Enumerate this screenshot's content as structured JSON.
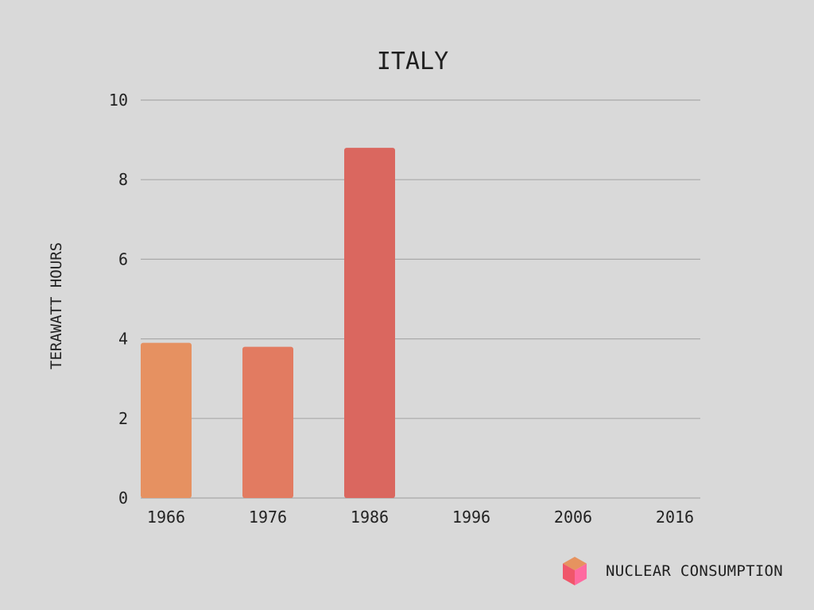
{
  "chart_data": {
    "type": "bar",
    "title": "ITALY",
    "xlabel": "",
    "ylabel": "TERAWATT HOURS",
    "categories": [
      "1966",
      "1976",
      "1986",
      "1996",
      "2006",
      "2016"
    ],
    "series": [
      {
        "name": "NUCLEAR CONSUMPTION",
        "values": [
          3.9,
          3.8,
          8.8,
          0,
          0,
          0
        ]
      }
    ],
    "ylim": [
      0,
      10
    ],
    "yticks": [
      "0",
      "2",
      "4",
      "6",
      "8",
      "10"
    ],
    "grid": true,
    "legend_position": "bottom-right",
    "bar_colors": [
      "#e69161",
      "#e27b61",
      "#da675f",
      "#d65c5c",
      "#d4555d",
      "#d04d5e"
    ],
    "grid_color": "#a9a9a9"
  },
  "legend": {
    "label": "NUCLEAR CONSUMPTION",
    "icon": "cube-icon",
    "icon_colors": {
      "top": "#e6935f",
      "left": "#f0566a",
      "right": "#ff6aa0"
    }
  }
}
